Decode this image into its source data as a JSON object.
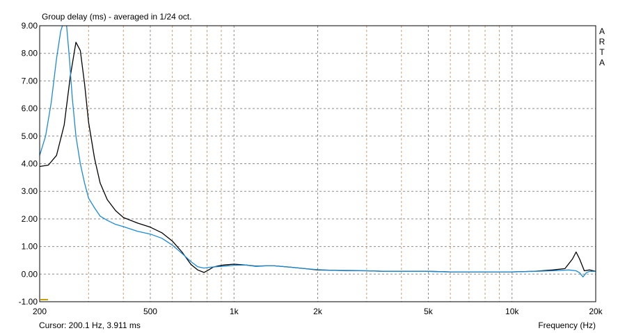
{
  "title": "Group delay (ms) - averaged in 1/24 oct.",
  "brand_letters": [
    "A",
    "R",
    "T",
    "A"
  ],
  "cursor_readout": "Cursor: 200.1 Hz, 3.911 ms",
  "chart_data": {
    "type": "line",
    "title": "Group delay (ms) - averaged in 1/24 oct.",
    "xlabel": "Frequency (Hz)",
    "ylabel": "",
    "xscale": "log",
    "xlim": [
      200,
      20000
    ],
    "ylim": [
      -1.0,
      9.0
    ],
    "x_major_ticks": [
      {
        "value": 200,
        "label": "200"
      },
      {
        "value": 500,
        "label": "500"
      },
      {
        "value": 1000,
        "label": "1k"
      },
      {
        "value": 2000,
        "label": "2k"
      },
      {
        "value": 5000,
        "label": "5k"
      },
      {
        "value": 10000,
        "label": "10k"
      },
      {
        "value": 20000,
        "label": "20k"
      }
    ],
    "x_minor_ticks": [
      300,
      400,
      600,
      700,
      800,
      900,
      3000,
      4000,
      6000,
      7000,
      8000,
      9000
    ],
    "y_ticks": [
      "-1.00",
      "0.00",
      "1.00",
      "2.00",
      "3.00",
      "4.00",
      "5.00",
      "6.00",
      "7.00",
      "8.00",
      "9.00"
    ],
    "grid": true,
    "series": [
      {
        "color": "#000000",
        "x": [
          200,
          215,
          230,
          245,
          258,
          270,
          280,
          290,
          300,
          315,
          330,
          350,
          375,
          400,
          450,
          500,
          550,
          600,
          650,
          700,
          740,
          780,
          810,
          840,
          880,
          920,
          1000,
          1100,
          1200,
          1300,
          1400,
          1600,
          1800,
          2000,
          2500,
          3000,
          3500,
          4000,
          5000,
          6000,
          7000,
          8000,
          9000,
          10000,
          12000,
          14000,
          15500,
          16500,
          17000,
          17500,
          18200,
          19000,
          20000
        ],
        "y": [
          3.9,
          3.95,
          4.3,
          5.4,
          7.2,
          8.4,
          8.1,
          6.9,
          5.5,
          4.2,
          3.3,
          2.7,
          2.3,
          2.05,
          1.85,
          1.7,
          1.5,
          1.2,
          0.8,
          0.35,
          0.15,
          0.06,
          0.15,
          0.25,
          0.3,
          0.33,
          0.36,
          0.33,
          0.29,
          0.3,
          0.3,
          0.25,
          0.2,
          0.15,
          0.13,
          0.12,
          0.1,
          0.1,
          0.1,
          0.08,
          0.08,
          0.08,
          0.08,
          0.08,
          0.1,
          0.15,
          0.2,
          0.55,
          0.8,
          0.55,
          0.12,
          0.15,
          0.1
        ]
      },
      {
        "color": "#1a8ad4",
        "x": [
          200,
          210,
          220,
          230,
          238,
          245,
          250,
          256,
          262,
          270,
          280,
          290,
          300,
          315,
          330,
          350,
          375,
          400,
          450,
          500,
          550,
          600,
          650,
          700,
          740,
          780,
          820,
          900,
          1000,
          1100,
          1200,
          1300,
          1400,
          1600,
          1800,
          2000,
          2500,
          3000,
          3500,
          4000,
          5000,
          6000,
          7000,
          8000,
          9000,
          10000,
          12000,
          14000,
          16000,
          17000,
          17500,
          18000,
          18500,
          19000,
          20000
        ],
        "y": [
          4.3,
          5.0,
          6.2,
          7.8,
          8.8,
          9.2,
          9.0,
          7.8,
          6.4,
          5.0,
          4.0,
          3.3,
          2.75,
          2.4,
          2.1,
          1.95,
          1.8,
          1.72,
          1.55,
          1.45,
          1.3,
          1.05,
          0.75,
          0.45,
          0.27,
          0.22,
          0.25,
          0.28,
          0.32,
          0.33,
          0.28,
          0.3,
          0.3,
          0.25,
          0.2,
          0.16,
          0.12,
          0.12,
          0.1,
          0.1,
          0.1,
          0.08,
          0.08,
          0.08,
          0.08,
          0.08,
          0.1,
          0.12,
          0.15,
          0.12,
          0.05,
          -0.1,
          0.05,
          0.1,
          0.1
        ]
      }
    ],
    "marker_color": "#c8a000",
    "axis_color": "#000000",
    "grid_color": "#8c8c8c",
    "minor_grid_color": "#c8a070"
  }
}
